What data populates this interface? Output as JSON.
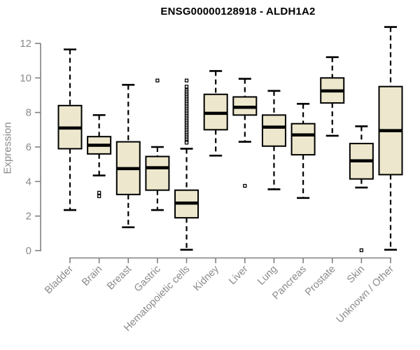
{
  "chart_data": {
    "type": "box",
    "title": "ENSG00000128918 - ALDH1A2",
    "xlabel": "",
    "ylabel": "Expression",
    "ylim": [
      0,
      13
    ],
    "yticks": [
      0,
      2,
      4,
      6,
      8,
      10,
      12
    ],
    "grid": false,
    "legend": "none",
    "marker": "open-square",
    "categories": [
      "Bladder",
      "Brain",
      "Breast",
      "Gastric",
      "Hematopoietic cells",
      "Kidney",
      "Liver",
      "Lung",
      "Pancreas",
      "Prostate",
      "Skin",
      "Unknown / Other"
    ],
    "series": [
      {
        "name": "Bladder",
        "whisker_low": 2.35,
        "q1": 5.9,
        "median": 7.1,
        "q3": 8.4,
        "whisker_high": 11.65,
        "outliers": []
      },
      {
        "name": "Brain",
        "whisker_low": 4.35,
        "q1": 5.6,
        "median": 6.1,
        "q3": 6.6,
        "whisker_high": 7.85,
        "outliers": [
          3.35,
          3.15
        ]
      },
      {
        "name": "Breast",
        "whisker_low": 1.35,
        "q1": 3.25,
        "median": 4.75,
        "q3": 6.3,
        "whisker_high": 9.6,
        "outliers": []
      },
      {
        "name": "Gastric",
        "whisker_low": 2.35,
        "q1": 3.5,
        "median": 4.8,
        "q3": 5.45,
        "whisker_high": 6.0,
        "outliers": [
          9.85
        ]
      },
      {
        "name": "Hematopoietic cells",
        "whisker_low": 0.05,
        "q1": 1.9,
        "median": 2.75,
        "q3": 3.5,
        "whisker_high": 5.9,
        "outliers": [
          9.85,
          9.5,
          9.3,
          9.2,
          9.1,
          9.0,
          8.9,
          8.8,
          8.7,
          8.6,
          8.5,
          8.4,
          8.3,
          8.2,
          8.1,
          8.0,
          7.9,
          7.8,
          7.7,
          7.6,
          7.5,
          7.4,
          7.3,
          7.2,
          7.1,
          7.0,
          6.9,
          6.8,
          6.7,
          6.6,
          6.5,
          6.4,
          6.3,
          6.25
        ]
      },
      {
        "name": "Kidney",
        "whisker_low": 5.5,
        "q1": 7.0,
        "median": 7.95,
        "q3": 9.05,
        "whisker_high": 10.4,
        "outliers": []
      },
      {
        "name": "Liver",
        "whisker_low": 6.3,
        "q1": 7.85,
        "median": 8.3,
        "q3": 8.9,
        "whisker_high": 9.95,
        "outliers": [
          3.75
        ]
      },
      {
        "name": "Lung",
        "whisker_low": 3.55,
        "q1": 6.05,
        "median": 7.15,
        "q3": 7.85,
        "whisker_high": 9.25,
        "outliers": []
      },
      {
        "name": "Pancreas",
        "whisker_low": 3.05,
        "q1": 5.55,
        "median": 6.7,
        "q3": 7.35,
        "whisker_high": 8.5,
        "outliers": []
      },
      {
        "name": "Prostate",
        "whisker_low": 6.65,
        "q1": 8.55,
        "median": 9.25,
        "q3": 10.0,
        "whisker_high": 11.2,
        "outliers": []
      },
      {
        "name": "Skin",
        "whisker_low": 3.65,
        "q1": 4.15,
        "median": 5.2,
        "q3": 6.2,
        "whisker_high": 7.2,
        "outliers": [
          0.02
        ]
      },
      {
        "name": "Unknown / Other",
        "whisker_low": 0.05,
        "q1": 4.4,
        "median": 6.95,
        "q3": 9.5,
        "whisker_high": 12.95,
        "outliers": []
      }
    ],
    "colors": {
      "box_fill": "#EDE8CD",
      "box_border": "#000000",
      "median": "#000000",
      "whisker": "#000000",
      "outlier": "#000000",
      "axis": "#808080",
      "tick_label": "#8a8a8a",
      "title": "#000000",
      "background": "#ffffff"
    }
  }
}
